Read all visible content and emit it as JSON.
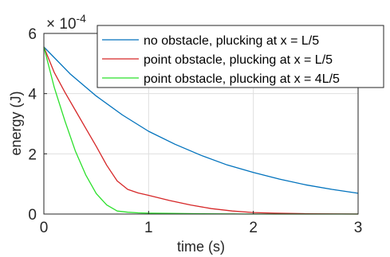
{
  "chart_data": {
    "type": "line",
    "xlabel": "time (s)",
    "ylabel": "energy (J)",
    "exponent_label": {
      "base": "× 10",
      "exp": "-4"
    },
    "xlim": [
      0,
      3
    ],
    "ylim": [
      0,
      6
    ],
    "x_ticks": [
      0,
      1,
      2,
      3
    ],
    "x_tick_labels": [
      "0",
      "1",
      "2",
      "3"
    ],
    "y_ticks": [
      0,
      2,
      4,
      6
    ],
    "y_tick_labels": [
      "0",
      "2",
      "4",
      "6"
    ],
    "y_units_scale": 0.0001,
    "grid": true,
    "legend_position": "top-right",
    "series": [
      {
        "name": "no obstacle, plucking at x = L/5",
        "color": "#0072BD",
        "x": [
          0,
          0.25,
          0.5,
          0.75,
          1.0,
          1.25,
          1.5,
          1.75,
          2.0,
          2.25,
          2.5,
          2.75,
          3.0
        ],
        "y": [
          5.55,
          4.66,
          3.92,
          3.29,
          2.75,
          2.32,
          1.95,
          1.63,
          1.38,
          1.16,
          0.97,
          0.82,
          0.69
        ]
      },
      {
        "name": "point obstacle, plucking at x = L/5",
        "color": "#D62728",
        "x": [
          0,
          0.1,
          0.2,
          0.3,
          0.4,
          0.5,
          0.6,
          0.7,
          0.8,
          0.9,
          1.0,
          1.2,
          1.4,
          1.6,
          1.8,
          2.0,
          2.2,
          2.5,
          3.0
        ],
        "y": [
          5.55,
          4.7,
          4.05,
          3.45,
          2.85,
          2.25,
          1.62,
          1.1,
          0.82,
          0.7,
          0.62,
          0.45,
          0.3,
          0.18,
          0.1,
          0.05,
          0.03,
          0.01,
          0.0
        ]
      },
      {
        "name": "point obstacle, plucking at x = 4L/5",
        "color": "#2BE02B",
        "x": [
          0,
          0.1,
          0.2,
          0.3,
          0.4,
          0.5,
          0.6,
          0.7,
          0.8,
          0.9,
          1.0,
          1.2,
          1.5,
          2.0,
          3.0
        ],
        "y": [
          5.55,
          4.2,
          3.1,
          2.1,
          1.3,
          0.68,
          0.3,
          0.1,
          0.06,
          0.04,
          0.03,
          0.02,
          0.01,
          0.0,
          0.0
        ]
      }
    ]
  }
}
